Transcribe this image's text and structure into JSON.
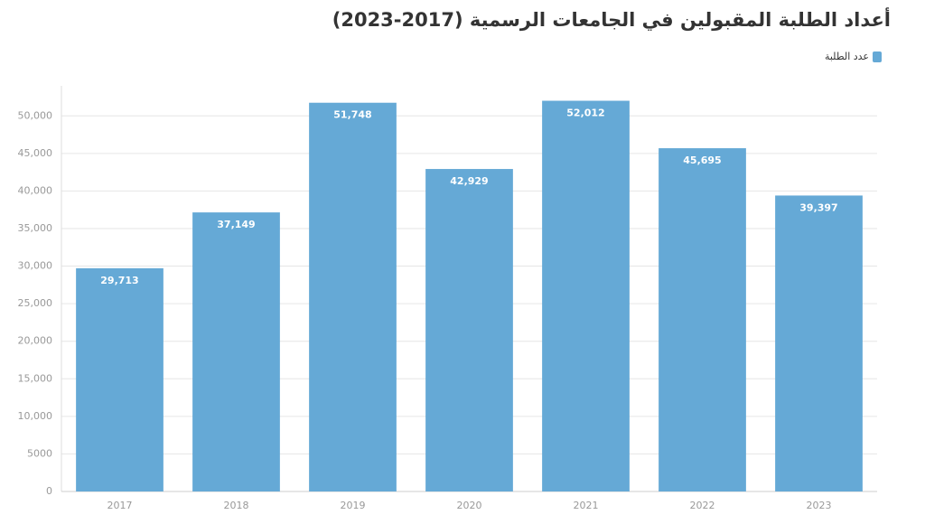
{
  "chart_data": {
    "type": "bar",
    "title": "أعداد الطلبة المقبولين في الجامعات الرسمية (2017-2023)",
    "categories": [
      "2017",
      "2018",
      "2019",
      "2020",
      "2021",
      "2022",
      "2023"
    ],
    "series": [
      {
        "name": "عدد الطلبة",
        "color": "#65a9d6",
        "values": [
          29713,
          37149,
          51748,
          42929,
          52012,
          45695,
          39397
        ],
        "value_labels": [
          "29,713",
          "37,149",
          "51,748",
          "42,929",
          "52,012",
          "45,695",
          "39,397"
        ]
      }
    ],
    "ylim": [
      0,
      54000
    ],
    "yticks": [
      0,
      5000,
      {
        "value": 10000,
        "label": "10,000"
      },
      {
        "value": 15000,
        "label": "15,000"
      },
      {
        "value": 20000,
        "label": "20,000"
      },
      {
        "value": 25000,
        "label": "25,000"
      },
      {
        "value": 30000,
        "label": "30,000"
      },
      {
        "value": 35000,
        "label": "35,000"
      },
      {
        "value": 40000,
        "label": "40,000"
      },
      {
        "value": 45000,
        "label": "45,000"
      },
      {
        "value": 50000,
        "label": "50,000"
      }
    ],
    "grid": true
  }
}
